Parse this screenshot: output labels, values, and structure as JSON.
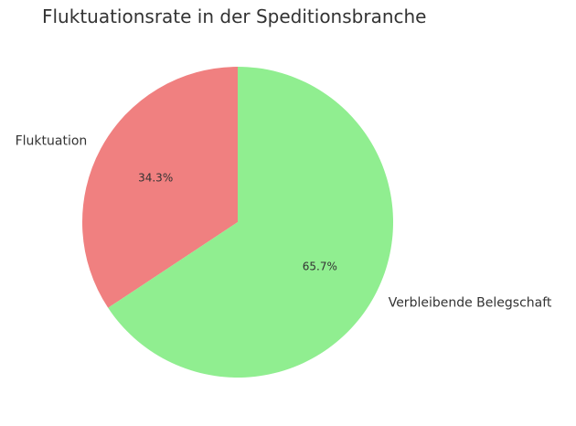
{
  "chart_data": {
    "type": "pie",
    "title": "Fluktuationsrate in der Speditionsbranche",
    "slices": [
      {
        "label": "Fluktuation",
        "value": 34.3,
        "display": "34.3%",
        "color": "#f08080"
      },
      {
        "label": "Verbleibende Belegschaft",
        "value": 65.7,
        "display": "65.7%",
        "color": "#90ee90"
      }
    ],
    "start_angle": 90,
    "direction": "counterclockwise"
  }
}
